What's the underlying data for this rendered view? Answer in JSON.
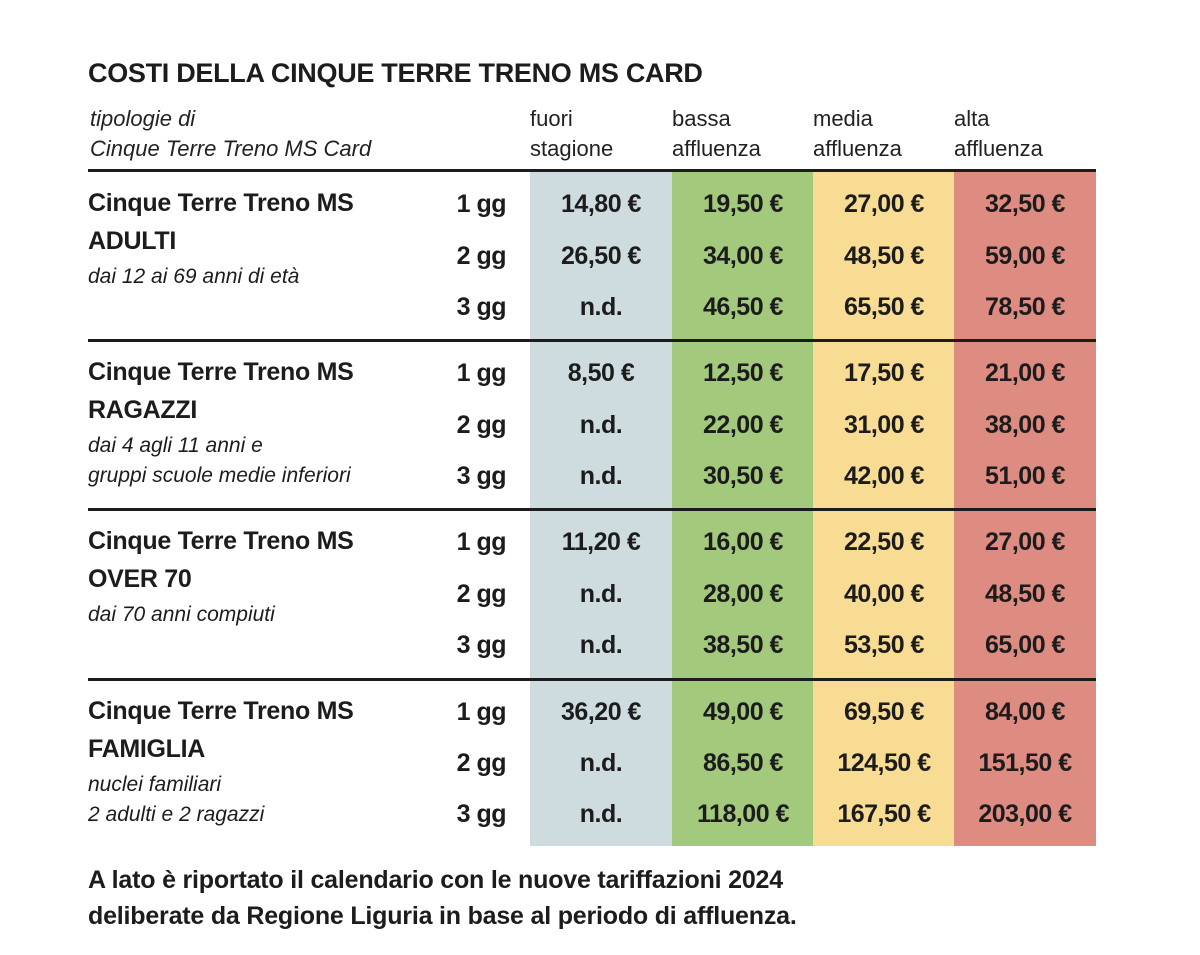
{
  "title": "COSTI DELLA CINQUE TERRE TRENO MS CARD",
  "header": {
    "type_line1": "tipologie di",
    "type_line2": "Cinque Terre Treno MS Card",
    "columns": [
      {
        "line1": "fuori",
        "line2": "stagione",
        "color": "#cfdcdf"
      },
      {
        "line1": "bassa",
        "line2": "affluenza",
        "color": "#a3c97d"
      },
      {
        "line1": "media",
        "line2": "affluenza",
        "color": "#f9dc94"
      },
      {
        "line1": "alta",
        "line2": "affluenza",
        "color": "#de8c82"
      }
    ]
  },
  "categories": [
    {
      "name1": "Cinque Terre Treno MS",
      "name2": "ADULTI",
      "desc1": "dai 12 ai 69 anni di età",
      "desc2": "",
      "rows": [
        {
          "duration": "1 gg",
          "prices": [
            "14,80 €",
            "19,50 €",
            "27,00 €",
            "32,50 €"
          ]
        },
        {
          "duration": "2 gg",
          "prices": [
            "26,50 €",
            "34,00 €",
            "48,50 €",
            "59,00 €"
          ]
        },
        {
          "duration": "3 gg",
          "prices": [
            "n.d.",
            "46,50 €",
            "65,50 €",
            "78,50 €"
          ]
        }
      ]
    },
    {
      "name1": "Cinque Terre Treno MS",
      "name2": "RAGAZZI",
      "desc1": "dai 4 agli 11 anni e",
      "desc2": "gruppi scuole medie inferiori",
      "rows": [
        {
          "duration": "1 gg",
          "prices": [
            "8,50 €",
            "12,50 €",
            "17,50 €",
            "21,00 €"
          ]
        },
        {
          "duration": "2 gg",
          "prices": [
            "n.d.",
            "22,00 €",
            "31,00 €",
            "38,00 €"
          ]
        },
        {
          "duration": "3 gg",
          "prices": [
            "n.d.",
            "30,50 €",
            "42,00 €",
            "51,00 €"
          ]
        }
      ]
    },
    {
      "name1": "Cinque Terre Treno MS",
      "name2": "OVER 70",
      "desc1": "dai 70 anni compiuti",
      "desc2": "",
      "rows": [
        {
          "duration": "1 gg",
          "prices": [
            "11,20 €",
            "16,00 €",
            "22,50 €",
            "27,00 €"
          ]
        },
        {
          "duration": "2 gg",
          "prices": [
            "n.d.",
            "28,00 €",
            "40,00 €",
            "48,50 €"
          ]
        },
        {
          "duration": "3 gg",
          "prices": [
            "n.d.",
            "38,50 €",
            "53,50 €",
            "65,00 €"
          ]
        }
      ]
    },
    {
      "name1": "Cinque Terre Treno MS",
      "name2": "FAMIGLIA",
      "desc1": "nuclei familiari",
      "desc2": "2 adulti e 2 ragazzi",
      "rows": [
        {
          "duration": "1 gg",
          "prices": [
            "36,20 €",
            "49,00 €",
            "69,50 €",
            "84,00 €"
          ]
        },
        {
          "duration": "2 gg",
          "prices": [
            "n.d.",
            "86,50 €",
            "124,50 €",
            "151,50 €"
          ]
        },
        {
          "duration": "3 gg",
          "prices": [
            "n.d.",
            "118,00 €",
            "167,50 €",
            "203,00 €"
          ]
        }
      ]
    }
  ],
  "footer": {
    "line1": "A lato è riportato il calendario con le nuove tariffazioni 2024",
    "line2": "deliberate da Regione Liguria in base al periodo di affluenza."
  }
}
